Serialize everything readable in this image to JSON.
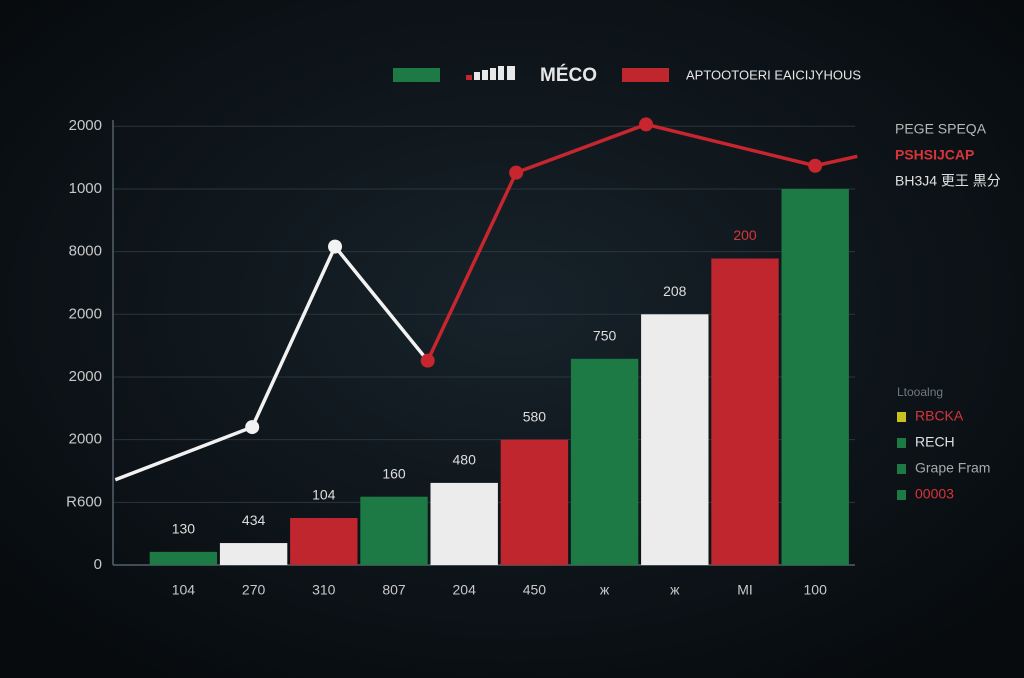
{
  "chart_data": {
    "type": "bar",
    "categories": [
      "104",
      "270",
      "310",
      "807",
      "204",
      "450",
      "ж",
      "ж",
      "MI",
      "100"
    ],
    "values": [
      0.21,
      0.35,
      0.75,
      1.09,
      1.31,
      2.0,
      3.29,
      4.0,
      4.89,
      6.0
    ],
    "colors": [
      "#1d7a44",
      "#ececec",
      "#c0262e",
      "#1d7a44",
      "#ececec",
      "#c0262e",
      "#1d7a44",
      "#ececec",
      "#c0262e",
      "#1d7a44"
    ],
    "bar_texts": [
      "130",
      "434",
      "104",
      "160",
      "480",
      "580",
      "750",
      "208",
      "200",
      null
    ],
    "bar_text_colors": [
      "#dddddd",
      "#dddddd",
      "#dddddd",
      "#dddddd",
      "#dddddd",
      "#dddddd",
      "#dddddd",
      "#dddddd",
      "#d8343a",
      null
    ],
    "ylim": [
      0,
      7.1
    ],
    "yticks": [
      0,
      {
        "value": 1,
        "label": "R600"
      },
      {
        "value": 2,
        "label": "2000"
      },
      {
        "value": 3,
        "label": "2000"
      },
      {
        "value": 4,
        "label": "2000"
      },
      {
        "value": 5,
        "label": "8000"
      },
      {
        "value": 6,
        "label": "1000"
      },
      {
        "value": 7,
        "label": "2000"
      }
    ],
    "grid": true,
    "lines": [
      {
        "color": "#f2f2f2",
        "x": [
          -0.97,
          0.98,
          2.16,
          3.48
        ],
        "values": [
          1.36,
          2.2,
          5.08,
          3.26
        ],
        "markers": [
          false,
          true,
          true,
          false
        ]
      },
      {
        "color": "#c8262e",
        "x": [
          3.48,
          4.74,
          6.59,
          9.0,
          9.6
        ],
        "values": [
          3.26,
          6.26,
          7.03,
          6.37,
          6.52
        ],
        "markers": [
          true,
          true,
          true,
          true,
          false
        ]
      }
    ],
    "top_legend": [
      {
        "name": "MÉCO",
        "color": "#1d7a44"
      },
      {
        "name": "APTOOTOERI EAICIJYHOUS",
        "color": "#c0262e"
      }
    ],
    "side_notes": [
      {
        "text": "PEGE SPEQA",
        "color": "#b8b8b8"
      },
      {
        "text": "PSHSIJCAP",
        "color": "#d8343a"
      },
      {
        "text": "BH3J4 更王 黒分",
        "color": "#e0e0e0"
      }
    ],
    "legend": {
      "title": "Ltooalng",
      "items": [
        {
          "name": "RBCKA",
          "color": "#c9c21e",
          "text_color": "#d8343a"
        },
        {
          "name": "RECH",
          "color": "#1d7a44",
          "text_color": "#e0e0e0"
        },
        {
          "name": "Grape Fram",
          "color": "#1d7a44",
          "text_color": "#a8a8a8"
        },
        {
          "name": "00003",
          "color": "#1d7a44",
          "text_color": "#d8343a"
        }
      ]
    }
  }
}
